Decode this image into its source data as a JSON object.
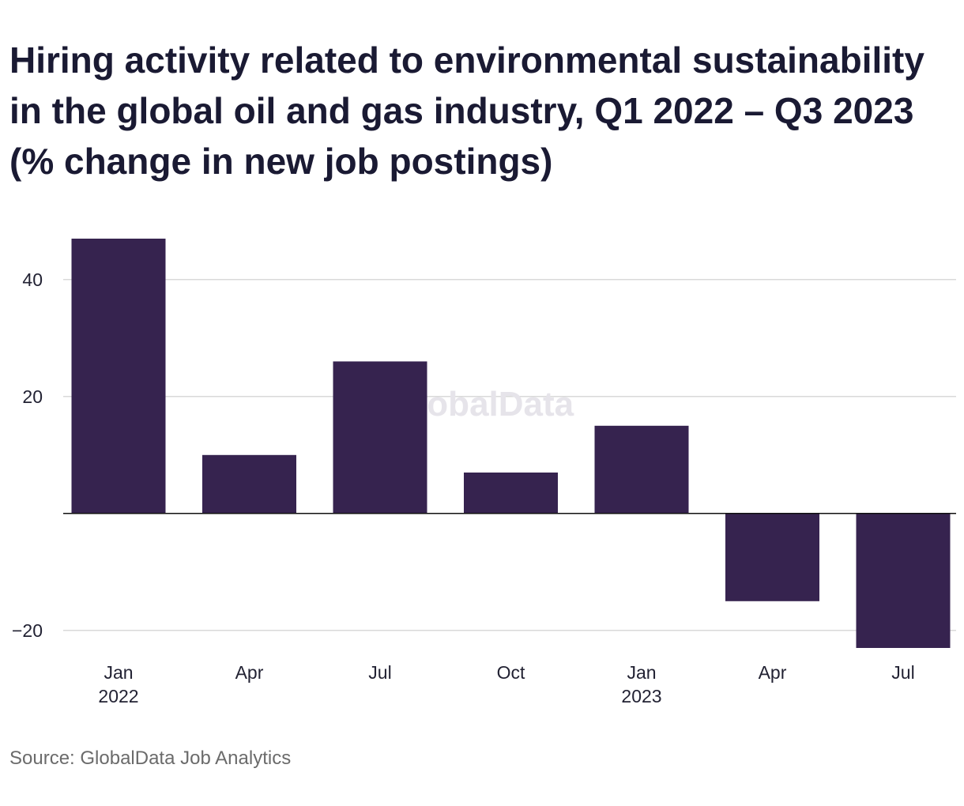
{
  "chart_data": {
    "type": "bar",
    "title": "Hiring activity related to environmental sustainability in the global oil and gas industry, Q1 2022 – Q3 2023 (% change in new job postings)",
    "categories": [
      {
        "label": "Jan",
        "sublabel": "2022"
      },
      {
        "label": "Apr",
        "sublabel": ""
      },
      {
        "label": "Jul",
        "sublabel": ""
      },
      {
        "label": "Oct",
        "sublabel": ""
      },
      {
        "label": "Jan",
        "sublabel": "2023"
      },
      {
        "label": "Apr",
        "sublabel": ""
      },
      {
        "label": "Jul",
        "sublabel": ""
      }
    ],
    "values": [
      47,
      10,
      26,
      7,
      15,
      -15,
      -23
    ],
    "xlabel": "",
    "ylabel": "",
    "ylim": [
      -23,
      47
    ],
    "yticks": [
      -20,
      20,
      40
    ],
    "grid": true,
    "bar_color": "#36234f"
  },
  "watermark": "GlobalData",
  "source": "Source: GlobalData Job Analytics"
}
